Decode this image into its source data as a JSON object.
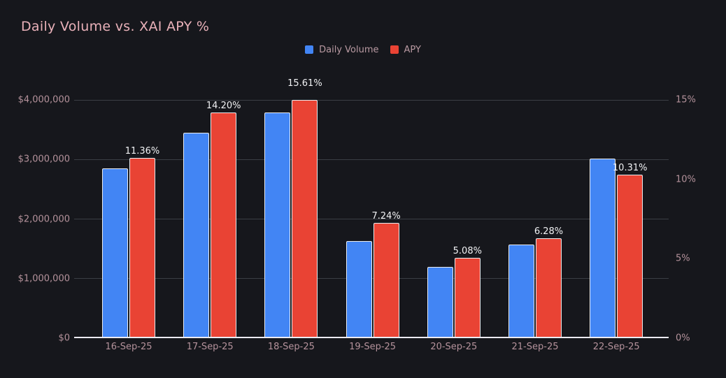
{
  "title": "Daily Volume vs. XAI APY %",
  "colors": {
    "background": "#16171c",
    "title_text": "#e9b1b9",
    "axis_text": "#b4929b",
    "gridline": "#3b3e45",
    "baseline": "#ebebf2",
    "data_label_text": "#f1f2f4",
    "daily_volume": "#4285f4",
    "apy": "#e94334"
  },
  "left_axis": {
    "ticks": [
      "$0",
      "$1,000,000",
      "$2,000,000",
      "$3,000,000",
      "$4,000,000"
    ],
    "max": 4000000
  },
  "right_axis": {
    "ticks": [
      "0%",
      "5%",
      "10%",
      "15%"
    ],
    "max": 15
  },
  "chart_data": {
    "type": "bar",
    "title": "Daily Volume vs. XAI APY %",
    "categories": [
      "16-Sep-25",
      "17-Sep-25",
      "18-Sep-25",
      "19-Sep-25",
      "20-Sep-25",
      "21-Sep-25",
      "22-Sep-25"
    ],
    "series": [
      {
        "name": "Daily Volume",
        "axis": "left",
        "color": "#4285f4",
        "values": [
          2845000,
          3450000,
          3790000,
          1630000,
          1200000,
          1570000,
          3020000
        ]
      },
      {
        "name": "APY",
        "axis": "right",
        "color": "#e94334",
        "values": [
          11.36,
          14.2,
          15.61,
          7.24,
          5.08,
          6.28,
          10.31
        ],
        "labels": [
          "11.36%",
          "14.20%",
          "15.61%",
          "7.24%",
          "5.08%",
          "6.28%",
          "10.31%"
        ]
      }
    ],
    "left_ylim": [
      0,
      4000000
    ],
    "right_ylim": [
      0,
      15
    ],
    "grid": "horizontal",
    "legend_position": "top-center",
    "note": "APY bar for 18-Sep-25 (15.61%) is clipped at the 15% axis maximum"
  }
}
